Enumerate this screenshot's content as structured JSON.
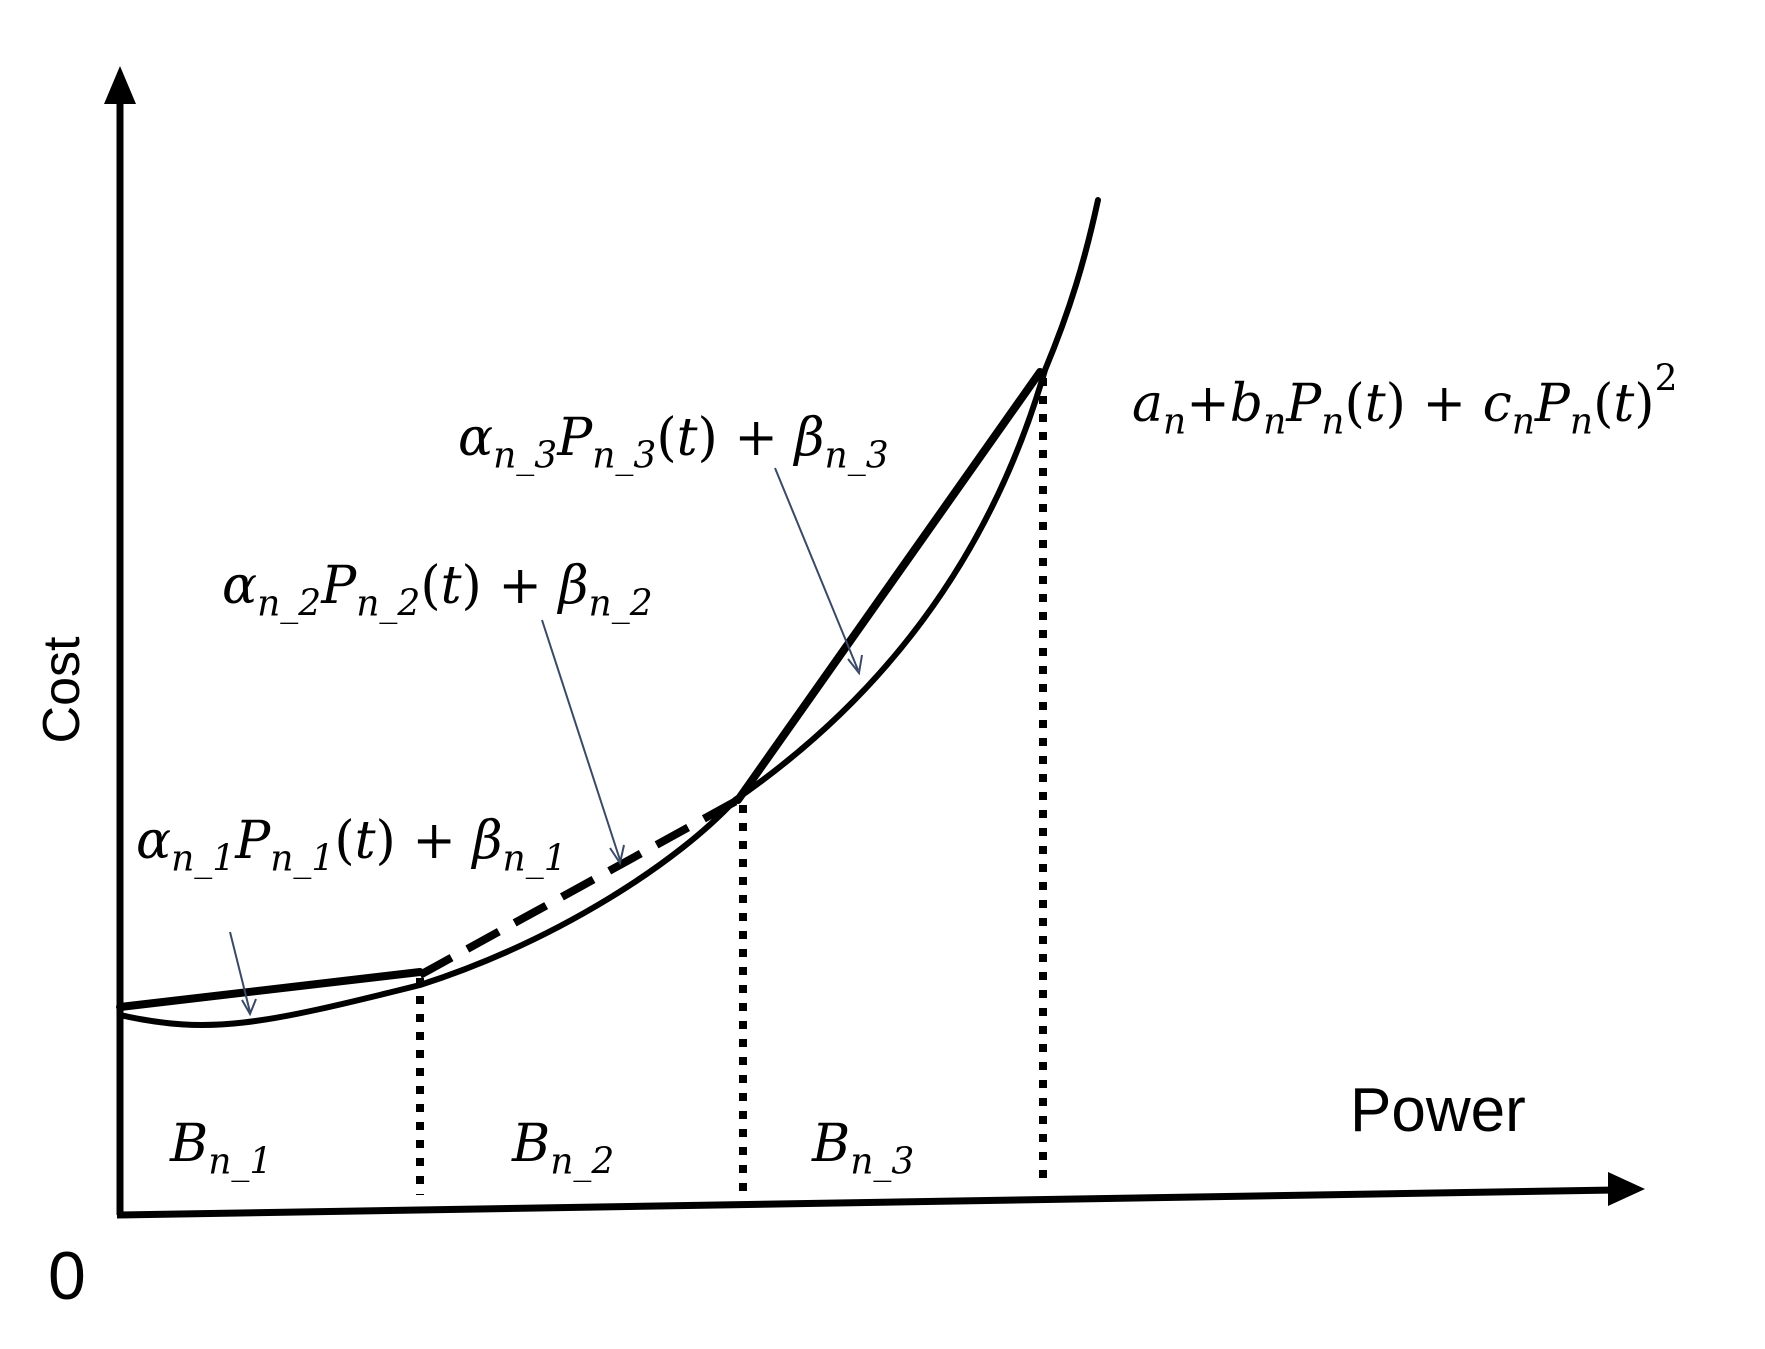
{
  "axes": {
    "x_label": "Power",
    "y_label": "Cost",
    "origin_label": "0"
  },
  "curve_formula": {
    "a": "a",
    "b": "b",
    "c": "c",
    "P": "P",
    "sub_n": "n",
    "t": "t",
    "plus": "+",
    "power": "2"
  },
  "segment_formulas": [
    {
      "alpha": "α",
      "P": "P",
      "beta": "β",
      "sub": "n_1",
      "t": "t",
      "plus": "+"
    },
    {
      "alpha": "α",
      "P": "P",
      "beta": "β",
      "sub": "n_2",
      "t": "t",
      "plus": "+"
    },
    {
      "alpha": "α",
      "P": "P",
      "beta": "β",
      "sub": "n_3",
      "t": "t",
      "plus": "+"
    }
  ],
  "blocks": [
    {
      "symbol": "B",
      "sub": "n_1"
    },
    {
      "symbol": "B",
      "sub": "n_2"
    },
    {
      "symbol": "B",
      "sub": "n_3"
    }
  ],
  "colors": {
    "ink": "#000000",
    "pointer": "#3a4a66"
  }
}
